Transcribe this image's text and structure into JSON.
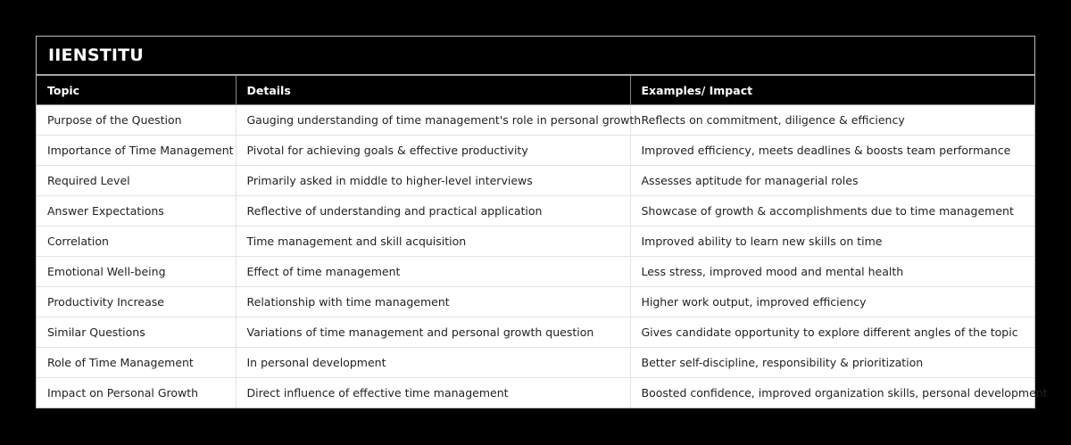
{
  "table": {
    "title": "IIENSTITU",
    "headers": [
      "Topic",
      "Details",
      "Examples/ Impact"
    ],
    "rows": [
      [
        "Purpose of the Question",
        "Gauging understanding of time management's role in personal growth",
        "Reflects on commitment, diligence & efficiency"
      ],
      [
        "Importance of Time Management",
        "Pivotal for achieving goals & effective productivity",
        "Improved efficiency, meets deadlines & boosts team performance"
      ],
      [
        "Required Level",
        "Primarily asked in middle to higher-level interviews",
        "Assesses aptitude for managerial roles"
      ],
      [
        "Answer Expectations",
        "Reflective of understanding and practical application",
        "Showcase of growth & accomplishments due to time management"
      ],
      [
        "Correlation",
        "Time management and skill acquisition",
        "Improved ability to learn new skills on time"
      ],
      [
        "Emotional Well-being",
        "Effect of time management",
        "Less stress, improved mood and mental health"
      ],
      [
        "Productivity Increase",
        "Relationship with time management",
        "Higher work output, improved efficiency"
      ],
      [
        "Similar Questions",
        "Variations of time management and personal growth question",
        "Gives candidate opportunity to explore different angles of the topic"
      ],
      [
        "Role of Time Management",
        "In personal development",
        "Better self-discipline, responsibility & prioritization"
      ],
      [
        "Impact on Personal Growth",
        "Direct influence of effective time management",
        "Boosted confidence, improved organization skills, personal development"
      ]
    ]
  }
}
